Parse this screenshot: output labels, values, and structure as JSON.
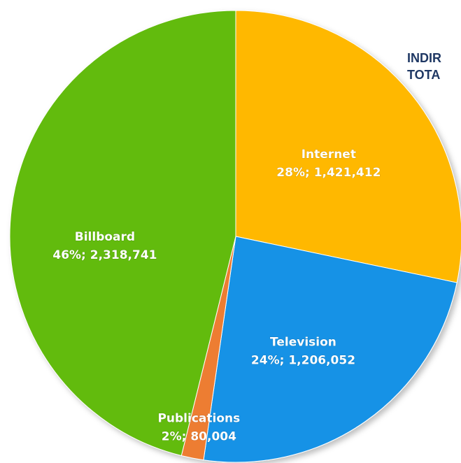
{
  "chart_data": {
    "type": "pie",
    "title_lines": [
      "INDIR",
      "TOTA"
    ],
    "slices": [
      {
        "name": "Internet",
        "percent_label": "28%",
        "value_label": "1,421,412",
        "value": 1421412,
        "color": "#FFB800"
      },
      {
        "name": "Television",
        "percent_label": "24%",
        "value_label": "1,206,052",
        "value": 1206052,
        "color": "#1592E6"
      },
      {
        "name": "Publications",
        "percent_label": "2%",
        "value_label": "80,004",
        "value": 80004,
        "color": "#ED7D31"
      },
      {
        "name": "Billboard",
        "percent_label": "46%",
        "value_label": "2,318,741",
        "value": 2318741,
        "color": "#62BB0F"
      }
    ],
    "start_angle_deg": 0,
    "direction": "clockwise",
    "legend": "none"
  }
}
